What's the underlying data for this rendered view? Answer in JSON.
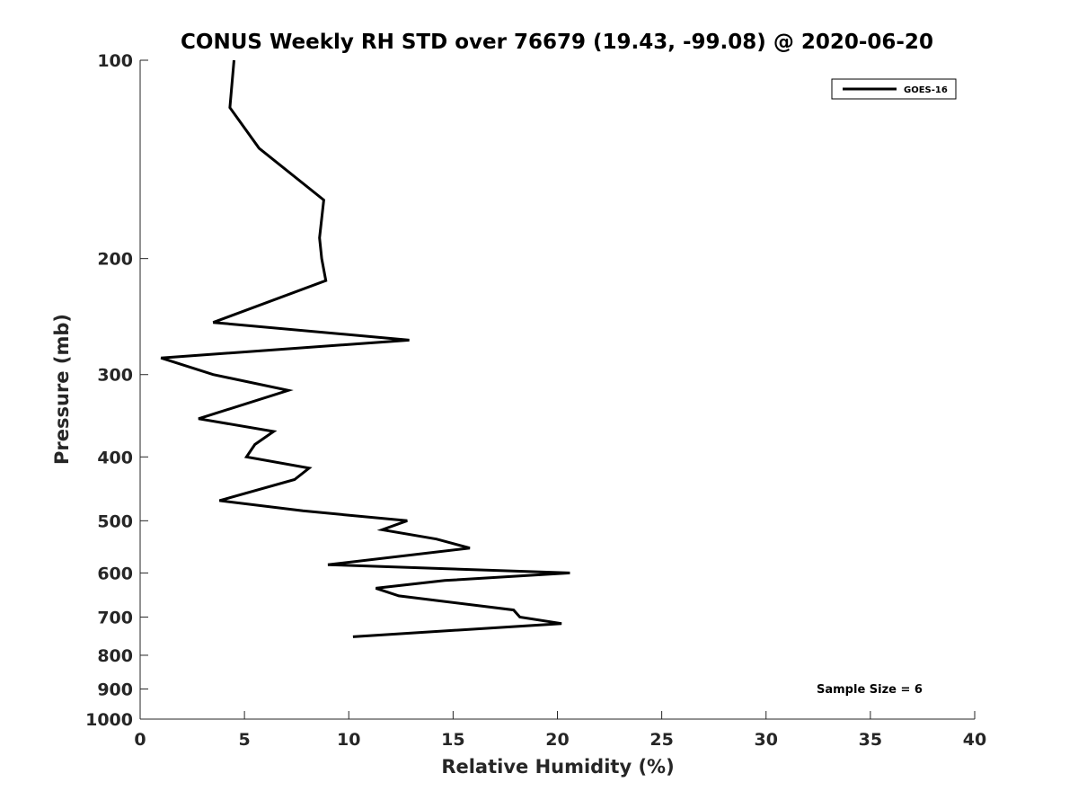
{
  "chart_data": {
    "type": "line",
    "title": "CONUS Weekly RH STD over 76679 (19.43, -99.08) @ 2020-06-20",
    "xlabel": "Relative Humidity (%)",
    "ylabel": "Pressure (mb)",
    "xlim": [
      0,
      40
    ],
    "ylim": [
      100,
      1000
    ],
    "y_scale": "log",
    "y_reversed": true,
    "x_ticks": [
      "0",
      "5",
      "10",
      "15",
      "20",
      "25",
      "30",
      "35",
      "40"
    ],
    "y_ticks": [
      "100",
      "200",
      "300",
      "400",
      "500",
      "600",
      "700",
      "800",
      "900",
      "1000"
    ],
    "grid": false,
    "legend_position": "top-right",
    "annotation": "Sample Size = 6",
    "series": [
      {
        "name": "GOES-16",
        "color": "#000000",
        "points": [
          {
            "rh": 4.5,
            "p": 100
          },
          {
            "rh": 4.3,
            "p": 118
          },
          {
            "rh": 5.7,
            "p": 136
          },
          {
            "rh": 8.8,
            "p": 163
          },
          {
            "rh": 8.6,
            "p": 186
          },
          {
            "rh": 8.7,
            "p": 200
          },
          {
            "rh": 8.9,
            "p": 216
          },
          {
            "rh": 3.5,
            "p": 250
          },
          {
            "rh": 12.9,
            "p": 266
          },
          {
            "rh": 1.0,
            "p": 283
          },
          {
            "rh": 3.5,
            "p": 300
          },
          {
            "rh": 7.1,
            "p": 317
          },
          {
            "rh": 2.8,
            "p": 350
          },
          {
            "rh": 6.4,
            "p": 366
          },
          {
            "rh": 5.5,
            "p": 383
          },
          {
            "rh": 5.1,
            "p": 400
          },
          {
            "rh": 8.1,
            "p": 416
          },
          {
            "rh": 7.4,
            "p": 433
          },
          {
            "rh": 3.8,
            "p": 466
          },
          {
            "rh": 7.8,
            "p": 483
          },
          {
            "rh": 12.8,
            "p": 500
          },
          {
            "rh": 11.6,
            "p": 516
          },
          {
            "rh": 14.2,
            "p": 533
          },
          {
            "rh": 15.8,
            "p": 550
          },
          {
            "rh": 9.0,
            "p": 583
          },
          {
            "rh": 20.6,
            "p": 600
          },
          {
            "rh": 14.6,
            "p": 616
          },
          {
            "rh": 11.3,
            "p": 633
          },
          {
            "rh": 12.4,
            "p": 650
          },
          {
            "rh": 17.9,
            "p": 683
          },
          {
            "rh": 18.2,
            "p": 700
          },
          {
            "rh": 20.2,
            "p": 716
          },
          {
            "rh": 10.2,
            "p": 750
          }
        ]
      }
    ]
  }
}
